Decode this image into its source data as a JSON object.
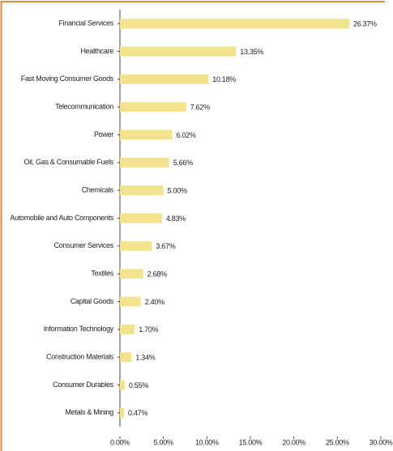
{
  "chart_data": {
    "type": "bar",
    "orientation": "horizontal",
    "categories": [
      "Financial Services",
      "Healthcare",
      "Fast Moving Consumer Goods",
      "Telecommunication",
      "Power",
      "Oil, Gas & Consumable Fuels",
      "Chemicals",
      "Automobile and Auto Components",
      "Consumer Services",
      "Textiles",
      "Capital Goods",
      "Information Technology",
      "Construction Materials",
      "Consumer Durables",
      "Metals & Mining"
    ],
    "values": [
      26.37,
      13.35,
      10.18,
      7.62,
      6.02,
      5.66,
      5.0,
      4.83,
      3.67,
      2.68,
      2.4,
      1.7,
      1.34,
      0.55,
      0.47
    ],
    "value_labels": [
      "26.37%",
      "13.35%",
      "10.18%",
      "7.62%",
      "6.02%",
      "5.66%",
      "5.00%",
      "4.83%",
      "3.67%",
      "2.68%",
      "2.40%",
      "1.70%",
      "1.34%",
      "0.55%",
      "0.47%"
    ],
    "color": "#f3e38c",
    "xlim": [
      0,
      30
    ],
    "xticks": [
      {
        "value": 0,
        "label": "0.00%"
      },
      {
        "value": 5,
        "label": "5.00%"
      },
      {
        "value": 10,
        "label": "10.00%"
      },
      {
        "value": 15,
        "label": "15.00%"
      },
      {
        "value": 20,
        "label": "20.00%"
      },
      {
        "value": 25,
        "label": "25.00%"
      },
      {
        "value": 30,
        "label": "30.00%"
      }
    ],
    "grid": false
  }
}
